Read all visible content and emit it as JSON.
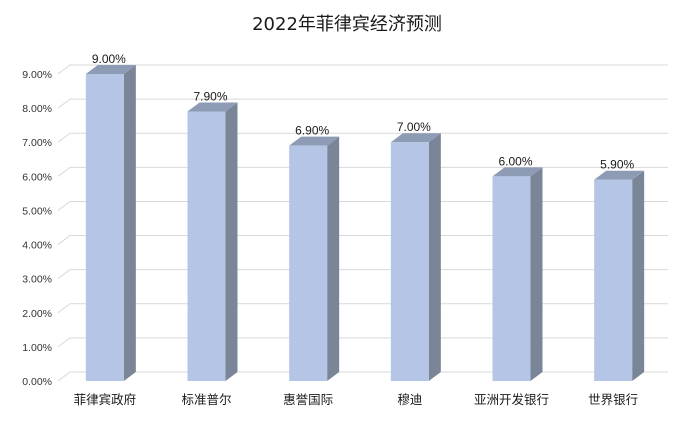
{
  "chart_data": {
    "type": "bar",
    "title": "2022年菲律宾经济预测",
    "categories": [
      "菲律宾政府",
      "标准普尔",
      "惠誉国际",
      "穆迪",
      "亚洲开发银行",
      "世界银行"
    ],
    "values": [
      9.0,
      7.9,
      6.9,
      7.0,
      6.0,
      5.9
    ],
    "data_labels": [
      "9.00%",
      "7.90%",
      "6.90%",
      "7.00%",
      "6.00%",
      "5.90%"
    ],
    "y_ticks": [
      "0.00%",
      "1.00%",
      "2.00%",
      "3.00%",
      "4.00%",
      "5.00%",
      "6.00%",
      "7.00%",
      "8.00%",
      "9.00%"
    ],
    "ylim": [
      0,
      9
    ],
    "xlabel": "",
    "ylabel": "",
    "grid": true,
    "legend": "none",
    "style": "3d-column"
  },
  "colors": {
    "bar_front": "#b4c5e6",
    "bar_top": "#8e9bb4",
    "bar_side": "#7a8598",
    "grid": "#d9d9d9",
    "text": "#1a1a1a"
  }
}
